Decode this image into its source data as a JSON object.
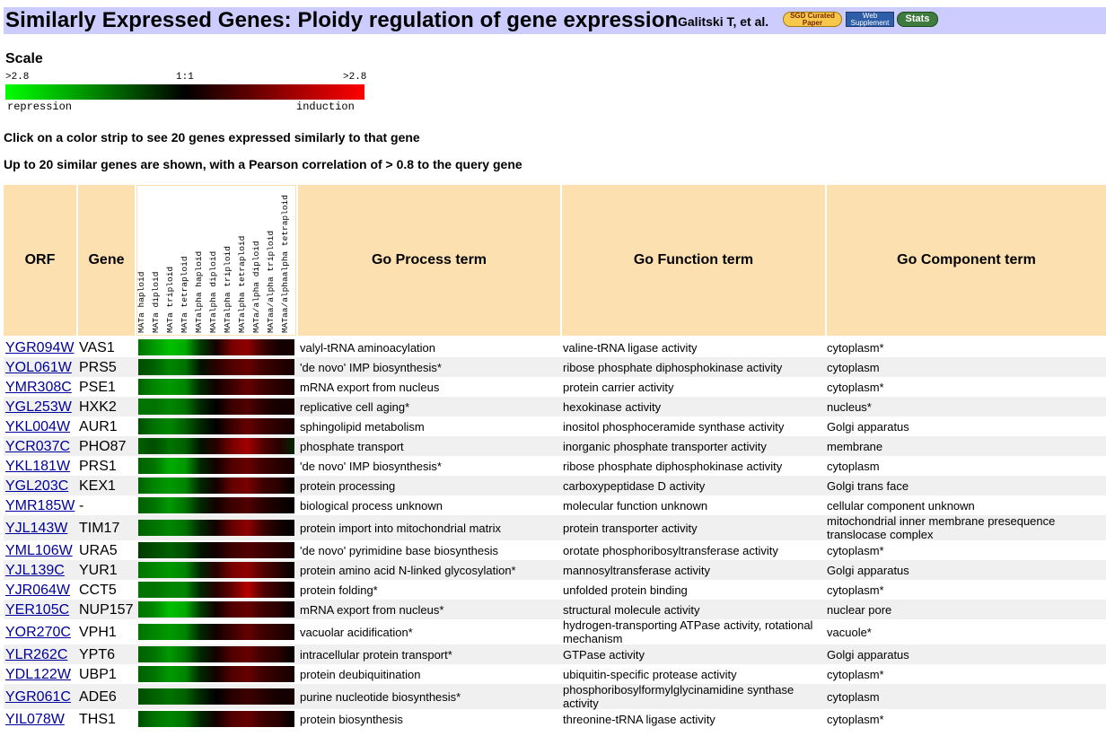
{
  "header": {
    "title": "Similarly Expressed Genes: Ploidy regulation of gene expression",
    "authors": "Galitski T, et al.",
    "badge_sgd": "SGD Curated Paper",
    "badge_web": "Web Supplement",
    "badge_stats": "Stats",
    "bg_color": "#ccccff"
  },
  "scale": {
    "label": "Scale",
    "left": ">2.8",
    "mid": "1:1",
    "right": ">2.8",
    "repression": "repression",
    "induction": "induction",
    "low_color": "#00ff00",
    "mid_color": "#000000",
    "high_color": "#ff0000"
  },
  "notes": {
    "line1": "Click on a color strip to see 20 genes expressed similarly to that gene",
    "line2": "Up to 20 similar genes are shown, with a Pearson correlation of > 0.8 to the query gene"
  },
  "table": {
    "headers": {
      "orf": "ORF",
      "gene": "Gene",
      "process": "Go Process term",
      "function": "Go Function term",
      "component": "Go Component term"
    },
    "header_color": "#fde0b0",
    "conditions": [
      "MATa haploid",
      "MATa diploid",
      "MATa triploid",
      "MATa tetraploid",
      "MATalpha haploid",
      "MATalpha diploid",
      "MATalpha triploid",
      "MATalpha tetraploid",
      "MATa/alpha diploid",
      "MATaa/alpha triploid",
      "MATaa/alphaalpha tetraploid"
    ],
    "rows": [
      {
        "orf": "YGR094W",
        "gene": "VAS1",
        "process": "valyl-tRNA aminoacylation",
        "function": "valine-tRNA ligase activity",
        "component": "cytoplasm*",
        "expr": [
          -0.6,
          -0.8,
          -1.0,
          -0.9,
          -0.3,
          0.1,
          0.6,
          0.7,
          0.3,
          0.1,
          0.1
        ]
      },
      {
        "orf": "YOL061W",
        "gene": "PRS5",
        "process": "'de novo' IMP biosynthesis*",
        "function": "ribose phosphate diphosphokinase activity",
        "component": "cytoplasm",
        "expr": [
          -0.4,
          -0.5,
          -0.7,
          -0.6,
          -0.1,
          0.2,
          0.4,
          0.5,
          0.3,
          0.2,
          0.1
        ]
      },
      {
        "orf": "YMR308C",
        "gene": "PSE1",
        "process": "mRNA export from nucleus",
        "function": "protein carrier activity",
        "component": "cytoplasm*",
        "expr": [
          -0.5,
          -0.7,
          -0.8,
          -0.7,
          -0.2,
          0.1,
          0.3,
          0.5,
          0.3,
          0.2,
          0.1
        ]
      },
      {
        "orf": "YGL253W",
        "gene": "HXK2",
        "process": "replicative cell aging*",
        "function": "hexokinase activity",
        "component": "nucleus*",
        "expr": [
          -0.6,
          -0.6,
          -0.7,
          -0.6,
          -0.2,
          0.0,
          0.3,
          0.4,
          0.2,
          0.1,
          0.1
        ]
      },
      {
        "orf": "YKL004W",
        "gene": "AUR1",
        "process": "sphingolipid metabolism",
        "function": "inositol phosphoceramide synthase activity",
        "component": "Golgi apparatus",
        "expr": [
          -0.4,
          -0.6,
          -0.7,
          -0.5,
          -0.2,
          0.0,
          0.3,
          0.5,
          0.3,
          0.2,
          0.1
        ]
      },
      {
        "orf": "YCR037C",
        "gene": "PHO87",
        "process": "phosphate transport",
        "function": "inorganic phosphate transporter activity",
        "component": "membrane",
        "expr": [
          -0.5,
          -0.4,
          -0.6,
          -0.5,
          -0.1,
          0.2,
          0.6,
          0.8,
          0.4,
          0.2,
          -0.2
        ]
      },
      {
        "orf": "YKL181W",
        "gene": "PRS1",
        "process": "'de novo' IMP biosynthesis*",
        "function": "ribose phosphate diphosphokinase activity",
        "component": "cytoplasm",
        "expr": [
          -0.5,
          -0.6,
          -0.9,
          -0.8,
          -0.2,
          0.1,
          0.4,
          0.5,
          0.3,
          0.2,
          0.1
        ]
      },
      {
        "orf": "YGL203C",
        "gene": "KEX1",
        "process": "protein processing",
        "function": "carboxypeptidase D activity",
        "component": "Golgi trans face",
        "expr": [
          -0.5,
          -0.7,
          -0.8,
          -0.7,
          -0.2,
          0.1,
          0.5,
          0.6,
          0.3,
          0.2,
          0.0
        ]
      },
      {
        "orf": "YMR185W",
        "gene": "-",
        "process": "biological process unknown",
        "function": "molecular function unknown",
        "component": "cellular component unknown",
        "expr": [
          -0.5,
          -0.6,
          -0.8,
          -0.6,
          -0.2,
          0.1,
          0.3,
          0.4,
          0.2,
          0.1,
          0.0
        ]
      },
      {
        "orf": "YJL143W",
        "gene": "TIM17",
        "process": "protein import into mitochondrial matrix",
        "function": "protein transporter activity",
        "component": "mitochondrial inner membrane presequence translocase complex",
        "expr": [
          -0.5,
          -0.6,
          -0.7,
          -0.6,
          -0.2,
          0.1,
          0.5,
          0.7,
          0.3,
          0.1,
          0.0
        ]
      },
      {
        "orf": "YML106W",
        "gene": "URA5",
        "process": "'de novo' pyrimidine base biosynthesis",
        "function": "orotate phosphoribosyltransferase activity",
        "component": "cytoplasm*",
        "expr": [
          -0.3,
          -0.4,
          -0.5,
          -0.4,
          -0.1,
          0.1,
          0.3,
          0.4,
          0.3,
          0.2,
          0.1
        ]
      },
      {
        "orf": "YJL139C",
        "gene": "YUR1",
        "process": "protein amino acid N-linked glycosylation*",
        "function": "mannosyltransferase activity",
        "component": "Golgi apparatus",
        "expr": [
          -0.6,
          -0.7,
          -0.8,
          -0.7,
          -0.2,
          0.2,
          0.6,
          0.7,
          0.4,
          0.2,
          0.0
        ]
      },
      {
        "orf": "YJR064W",
        "gene": "CCT5",
        "process": "protein folding*",
        "function": "unfolded protein binding",
        "component": "cytoplasm*",
        "expr": [
          -0.6,
          -0.6,
          -0.7,
          -0.7,
          -0.2,
          0.2,
          0.5,
          0.9,
          0.4,
          0.2,
          0.0
        ]
      },
      {
        "orf": "YER105C",
        "gene": "NUP157",
        "process": "mRNA export from nucleus*",
        "function": "structural molecule activity",
        "component": "nuclear pore",
        "expr": [
          -0.6,
          -0.7,
          -1.0,
          -0.9,
          -0.3,
          0.1,
          0.4,
          0.5,
          0.3,
          0.2,
          0.0
        ]
      },
      {
        "orf": "YOR270C",
        "gene": "VPH1",
        "process": "vacuolar acidification*",
        "function": "hydrogen-transporting ATPase activity, rotational mechanism",
        "component": "vacuole*",
        "expr": [
          -0.6,
          -0.7,
          -0.8,
          -0.7,
          -0.2,
          0.1,
          0.3,
          0.5,
          0.3,
          0.2,
          0.1
        ]
      },
      {
        "orf": "YLR262C",
        "gene": "YPT6",
        "process": "intracellular protein transport*",
        "function": "GTPase activity",
        "component": "Golgi apparatus",
        "expr": [
          -0.5,
          -0.6,
          -0.8,
          -0.6,
          -0.2,
          0.1,
          0.4,
          0.5,
          0.3,
          0.2,
          0.0
        ]
      },
      {
        "orf": "YDL122W",
        "gene": "UBP1",
        "process": "protein deubiquitination",
        "function": "ubiquitin-specific protease activity",
        "component": "cytoplasm*",
        "expr": [
          -0.5,
          -0.6,
          -0.8,
          -0.7,
          -0.2,
          0.1,
          0.4,
          0.5,
          0.3,
          0.2,
          0.1
        ]
      },
      {
        "orf": "YGR061C",
        "gene": "ADE6",
        "process": "purine nucleotide biosynthesis*",
        "function": "phosphoribosylformylglycinamidine synthase activity",
        "component": "cytoplasm",
        "expr": [
          -0.4,
          -0.5,
          -0.6,
          -0.5,
          -0.2,
          0.0,
          0.2,
          0.3,
          0.2,
          0.1,
          0.1
        ]
      },
      {
        "orf": "YIL078W",
        "gene": "THS1",
        "process": "protein biosynthesis",
        "function": "threonine-tRNA ligase activity",
        "component": "cytoplasm*",
        "expr": [
          -0.4,
          -0.6,
          -0.7,
          -0.6,
          -0.2,
          0.1,
          0.4,
          0.5,
          0.3,
          0.2,
          0.0
        ]
      }
    ]
  }
}
